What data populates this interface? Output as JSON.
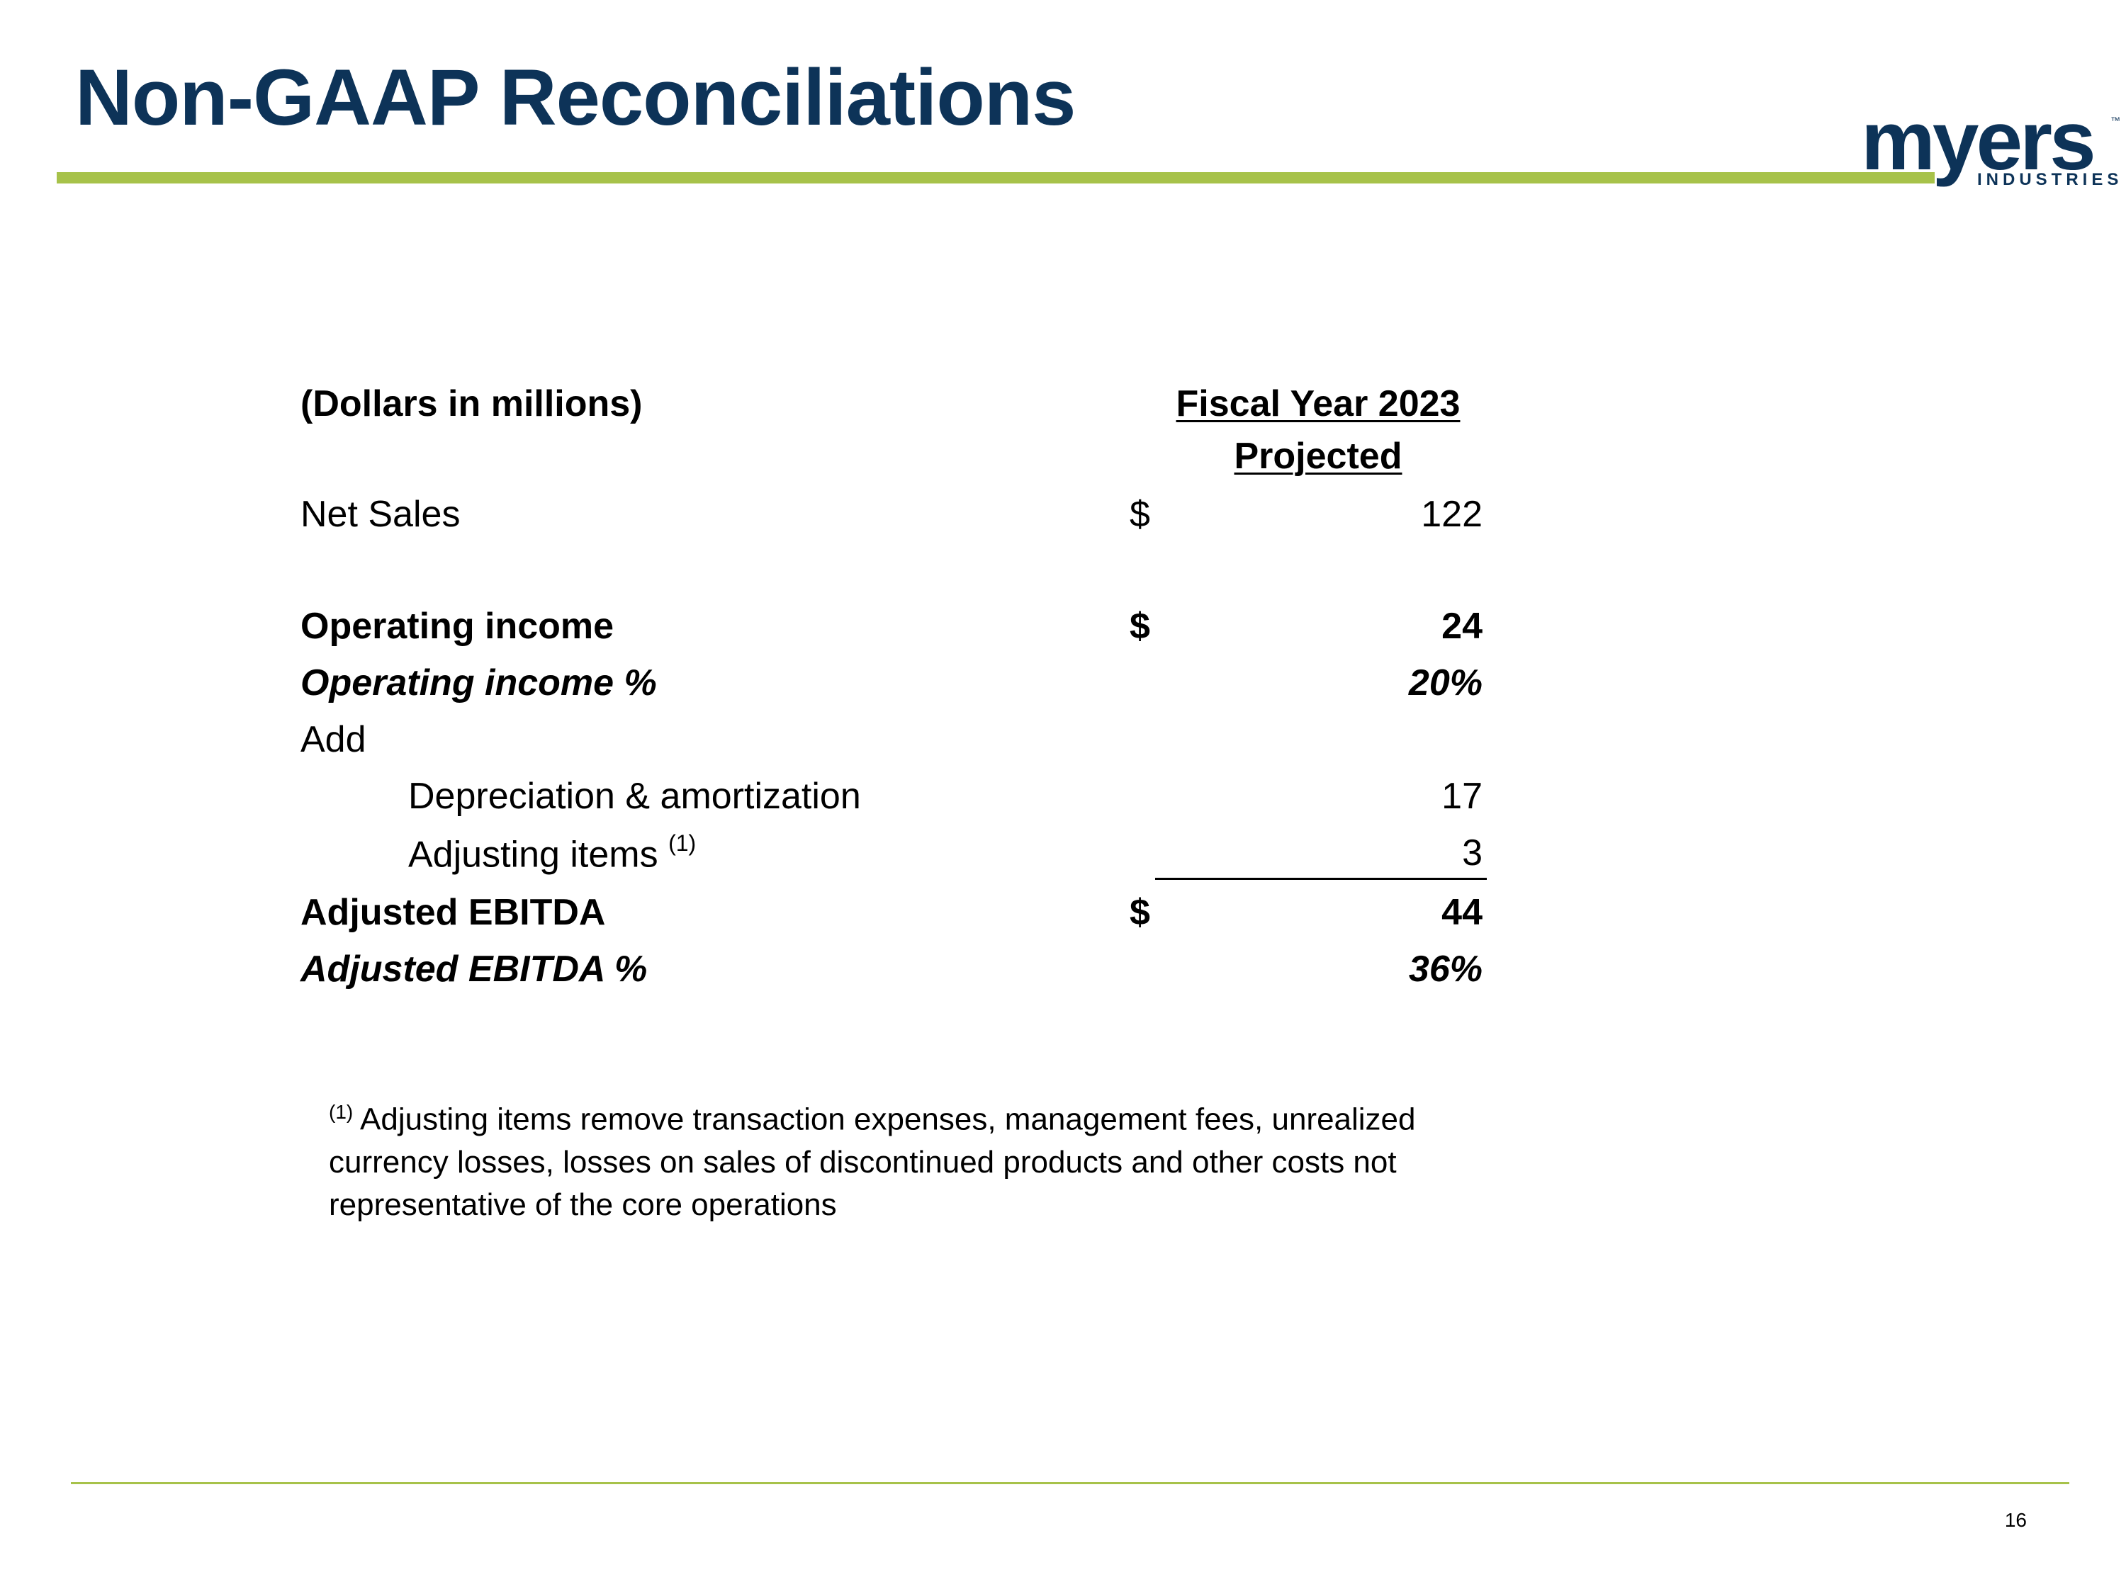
{
  "title": "Non-GAAP Reconciliations",
  "logo": {
    "word": "myers",
    "tm": "™",
    "sub": "INDUSTRIES"
  },
  "table": {
    "units_label": "(Dollars in millions)",
    "column_header_line1": "Fiscal Year 2023",
    "column_header_line2": "Projected",
    "rows": [
      {
        "label": "Net Sales",
        "currency": "$",
        "value": "122"
      },
      {
        "label": "Operating income",
        "currency": "$",
        "value": "24"
      },
      {
        "label": "Operating income %",
        "value": "20%"
      },
      {
        "label": "Add"
      },
      {
        "label": "Depreciation & amortization",
        "value": "17"
      },
      {
        "label": "Adjusting items",
        "footnote_mark": "(1)",
        "value": "3"
      },
      {
        "label": "Adjusted EBITDA",
        "currency": "$",
        "value": "44"
      },
      {
        "label": "Adjusted EBITDA %",
        "value": "36%"
      }
    ]
  },
  "footnote": {
    "mark": "(1)",
    "text": "Adjusting items remove transaction expenses, management fees, unrealized currency losses, losses on sales of discontinued products and other costs not representative of the core operations"
  },
  "colors": {
    "title": "#0d3358",
    "accent": "#a7c24a"
  },
  "page_number": "16"
}
